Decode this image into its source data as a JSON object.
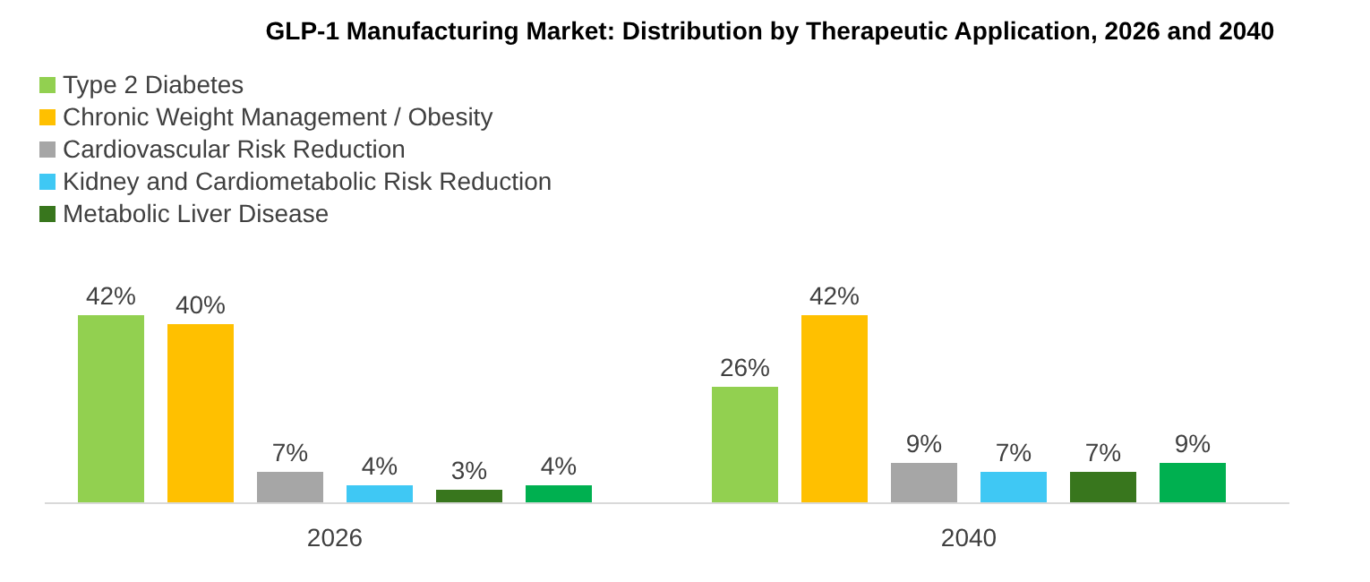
{
  "chart_data": {
    "type": "bar",
    "title": "GLP-1 Manufacturing Market: Distribution by Therapeutic Application, 2026 and 2040",
    "categories": [
      "2026",
      "2040"
    ],
    "series": [
      {
        "name": "Type 2 Diabetes",
        "color": "#92d050",
        "values": [
          42,
          26
        ],
        "value_labels": [
          "42%",
          "26%"
        ]
      },
      {
        "name": "Chronic Weight Management / Obesity",
        "color": "#ffc000",
        "values": [
          40,
          42
        ],
        "value_labels": [
          "40%",
          "42%"
        ]
      },
      {
        "name": "Cardiovascular Risk Reduction",
        "color": "#a6a6a6",
        "values": [
          7,
          9
        ],
        "value_labels": [
          "7%",
          "9%"
        ]
      },
      {
        "name": "Kidney and Cardiometabolic Risk Reduction",
        "color": "#3fc8f4",
        "values": [
          4,
          7
        ],
        "value_labels": [
          "4%",
          "7%"
        ]
      },
      {
        "name": "Metabolic Liver Disease",
        "color": "#38761d",
        "values": [
          3,
          7
        ],
        "value_labels": [
          "3%",
          "7%"
        ]
      },
      {
        "color": "#00b050",
        "values": [
          4,
          9
        ],
        "value_labels": [
          "4%",
          "9%"
        ]
      }
    ],
    "legend": "top left",
    "grid": false
  }
}
